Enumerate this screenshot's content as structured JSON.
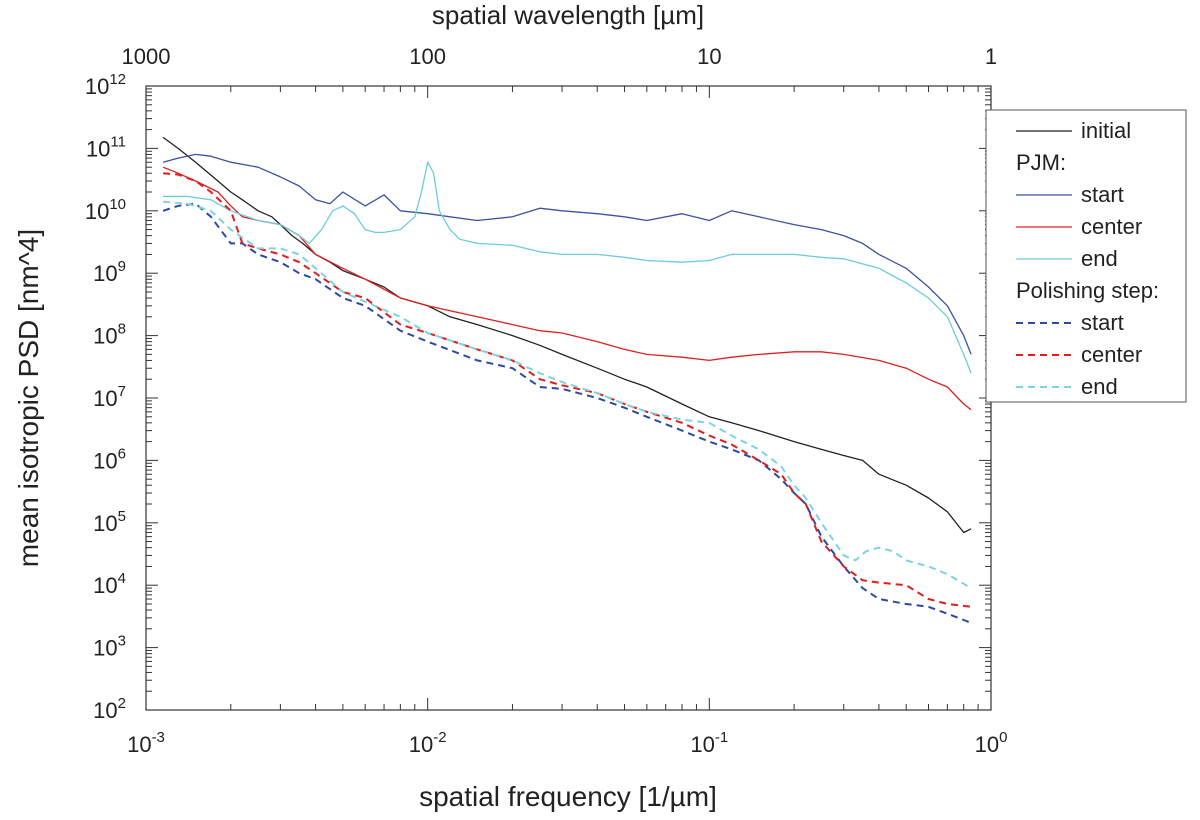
{
  "chart_data": {
    "type": "line",
    "scale": {
      "x": "log",
      "y": "log"
    },
    "xlabel": "spatial frequency [1/µm]",
    "x2label": "spatial wavelength [µm]",
    "ylabel": "mean isotropic PSD [nm^4]",
    "xlim": [
      0.001,
      1
    ],
    "ylim": [
      100,
      1000000000000
    ],
    "x_ticks": [
      {
        "base": "10",
        "exp": "-3"
      },
      {
        "base": "10",
        "exp": "-2"
      },
      {
        "base": "10",
        "exp": "-1"
      },
      {
        "base": "10",
        "exp": "0"
      }
    ],
    "x2_ticks": [
      "1000",
      "100",
      "10",
      "1"
    ],
    "y_ticks": [
      {
        "base": "10",
        "exp": "2"
      },
      {
        "base": "10",
        "exp": "3"
      },
      {
        "base": "10",
        "exp": "4"
      },
      {
        "base": "10",
        "exp": "5"
      },
      {
        "base": "10",
        "exp": "6"
      },
      {
        "base": "10",
        "exp": "7"
      },
      {
        "base": "10",
        "exp": "8"
      },
      {
        "base": "10",
        "exp": "9"
      },
      {
        "base": "10",
        "exp": "10"
      },
      {
        "base": "10",
        "exp": "11"
      },
      {
        "base": "10",
        "exp": "12"
      }
    ],
    "legend": {
      "position": "right",
      "header_pjm": "PJM:",
      "header_polishing": "Polishing step:"
    },
    "series": [
      {
        "name": "initial",
        "group": "",
        "color": "#222222",
        "dash": "solid",
        "x": [
          0.00115,
          0.0013,
          0.0015,
          0.0018,
          0.002,
          0.0022,
          0.0025,
          0.0028,
          0.003,
          0.0033,
          0.0036,
          0.004,
          0.0045,
          0.005,
          0.006,
          0.007,
          0.008,
          0.01,
          0.012,
          0.015,
          0.02,
          0.025,
          0.03,
          0.04,
          0.05,
          0.06,
          0.08,
          0.1,
          0.12,
          0.15,
          0.2,
          0.25,
          0.3,
          0.35,
          0.4,
          0.5,
          0.6,
          0.7,
          0.8,
          0.85
        ],
        "y": [
          150000000000,
          100000000000,
          60000000000,
          30000000000,
          20000000000,
          15000000000,
          10000000000,
          8000000000,
          6000000000,
          4000000000,
          3000000000,
          2000000000,
          1500000000,
          1100000000,
          800000000,
          600000000,
          400000000,
          300000000,
          200000000,
          150000000,
          100000000,
          70000000,
          50000000,
          30000000,
          20000000,
          15000000,
          8000000,
          5000000,
          4000000,
          3000000,
          2000000,
          1500000,
          1200000,
          1000000,
          600000,
          400000,
          250000,
          150000,
          70000,
          80000
        ]
      },
      {
        "name": "start",
        "group": "PJM",
        "color": "#3a52a3",
        "dash": "solid",
        "x": [
          0.00115,
          0.0013,
          0.0015,
          0.0017,
          0.002,
          0.0025,
          0.003,
          0.0035,
          0.004,
          0.0045,
          0.005,
          0.006,
          0.007,
          0.008,
          0.01,
          0.012,
          0.015,
          0.02,
          0.025,
          0.03,
          0.04,
          0.05,
          0.06,
          0.08,
          0.1,
          0.12,
          0.15,
          0.2,
          0.25,
          0.3,
          0.35,
          0.4,
          0.5,
          0.6,
          0.7,
          0.8,
          0.85
        ],
        "y": [
          60000000000,
          70000000000,
          80000000000,
          75000000000,
          60000000000,
          50000000000,
          35000000000,
          25000000000,
          15000000000,
          13000000000,
          20000000000,
          12000000000,
          18000000000,
          10000000000,
          9000000000,
          8000000000,
          7000000000,
          8000000000,
          11000000000,
          10000000000,
          9000000000,
          8000000000,
          7000000000,
          9000000000,
          7000000000,
          10000000000,
          8000000000,
          6000000000,
          5000000000,
          4000000000,
          3000000000,
          2000000000,
          1200000000,
          600000000,
          300000000,
          100000000,
          50000000
        ]
      },
      {
        "name": "center",
        "group": "PJM",
        "color": "#e02020",
        "dash": "solid",
        "x": [
          0.00115,
          0.0013,
          0.0015,
          0.0018,
          0.002,
          0.0022,
          0.0025,
          0.003,
          0.0035,
          0.004,
          0.005,
          0.006,
          0.008,
          0.01,
          0.012,
          0.015,
          0.02,
          0.025,
          0.03,
          0.04,
          0.05,
          0.06,
          0.08,
          0.1,
          0.12,
          0.15,
          0.2,
          0.25,
          0.3,
          0.4,
          0.5,
          0.6,
          0.7,
          0.8,
          0.85
        ],
        "y": [
          50000000000,
          40000000000,
          30000000000,
          20000000000,
          12000000000,
          8000000000,
          7000000000,
          6000000000,
          4000000000,
          2000000000,
          1200000000,
          800000000,
          400000000,
          300000000,
          250000000,
          200000000,
          150000000,
          120000000,
          110000000,
          80000000,
          60000000,
          50000000,
          45000000,
          40000000,
          45000000,
          50000000,
          55000000,
          55000000,
          50000000,
          40000000,
          30000000,
          20000000,
          15000000,
          8000000,
          6500000
        ]
      },
      {
        "name": "end",
        "group": "PJM",
        "color": "#6ccbdc",
        "dash": "solid",
        "x": [
          0.00115,
          0.0014,
          0.0017,
          0.002,
          0.0025,
          0.003,
          0.0035,
          0.0038,
          0.0042,
          0.0046,
          0.005,
          0.0055,
          0.006,
          0.0065,
          0.007,
          0.008,
          0.009,
          0.0095,
          0.01,
          0.0105,
          0.011,
          0.012,
          0.013,
          0.015,
          0.02,
          0.025,
          0.03,
          0.04,
          0.05,
          0.06,
          0.08,
          0.1,
          0.12,
          0.15,
          0.2,
          0.25,
          0.3,
          0.4,
          0.5,
          0.6,
          0.7,
          0.8,
          0.85
        ],
        "y": [
          17000000000,
          17000000000,
          15000000000,
          10000000000,
          7000000000,
          6000000000,
          4000000000,
          3000000000,
          5000000000,
          10000000000,
          12000000000,
          9000000000,
          5000000000,
          4500000000,
          4500000000,
          5000000000,
          8000000000,
          20000000000,
          60000000000,
          40000000000,
          10000000000,
          5000000000,
          3500000000,
          3000000000,
          2800000000,
          2200000000,
          2000000000,
          2000000000,
          1800000000,
          1600000000,
          1500000000,
          1600000000,
          2000000000,
          2000000000,
          2000000000,
          1800000000,
          1700000000,
          1200000000,
          700000000,
          400000000,
          200000000,
          50000000,
          25000000
        ]
      },
      {
        "name": "start",
        "group": "Polishing step",
        "color": "#2a4aa0",
        "dash": "dashed",
        "x": [
          0.00115,
          0.0013,
          0.0015,
          0.0017,
          0.002,
          0.0022,
          0.0025,
          0.003,
          0.0035,
          0.004,
          0.005,
          0.006,
          0.008,
          0.01,
          0.015,
          0.02,
          0.025,
          0.03,
          0.04,
          0.05,
          0.06,
          0.08,
          0.1,
          0.12,
          0.15,
          0.18,
          0.2,
          0.22,
          0.25,
          0.3,
          0.35,
          0.4,
          0.5,
          0.6,
          0.7,
          0.85
        ],
        "y": [
          10000000000,
          12000000000,
          13000000000,
          8000000000,
          3000000000,
          3000000000,
          2000000000,
          1500000000,
          1000000000,
          800000000,
          400000000,
          300000000,
          120000000,
          80000000,
          40000000,
          30000000,
          15000000,
          14000000,
          10000000,
          7000000,
          5000000,
          3000000,
          2000000,
          1500000,
          1000000,
          500000,
          300000,
          200000,
          60000,
          20000,
          9000,
          6000,
          5000,
          4500,
          3500,
          2500
        ]
      },
      {
        "name": "center",
        "group": "Polishing step",
        "color": "#e21b1b",
        "dash": "dashed",
        "x": [
          0.00115,
          0.0013,
          0.0015,
          0.0017,
          0.002,
          0.0022,
          0.0025,
          0.003,
          0.0035,
          0.004,
          0.005,
          0.006,
          0.008,
          0.01,
          0.015,
          0.02,
          0.025,
          0.03,
          0.04,
          0.05,
          0.06,
          0.08,
          0.1,
          0.12,
          0.15,
          0.18,
          0.2,
          0.22,
          0.25,
          0.3,
          0.35,
          0.4,
          0.5,
          0.6,
          0.7,
          0.85
        ],
        "y": [
          40000000000,
          38000000000,
          30000000000,
          20000000000,
          10000000000,
          3000000000,
          2500000000,
          2000000000,
          1500000000,
          1000000000,
          500000000,
          400000000,
          150000000,
          110000000,
          60000000,
          40000000,
          20000000,
          16000000,
          12000000,
          8000000,
          6000000,
          4000000,
          2500000,
          1800000,
          1000000,
          600000,
          300000,
          200000,
          50000,
          20000,
          12000,
          11000,
          10000,
          6000,
          5000,
          4500
        ]
      },
      {
        "name": "end",
        "group": "Polishing step",
        "color": "#7ed3e2",
        "dash": "dashed",
        "x": [
          0.00115,
          0.0014,
          0.0017,
          0.002,
          0.0025,
          0.003,
          0.0035,
          0.004,
          0.005,
          0.006,
          0.008,
          0.01,
          0.015,
          0.02,
          0.025,
          0.03,
          0.04,
          0.05,
          0.06,
          0.08,
          0.1,
          0.12,
          0.15,
          0.18,
          0.2,
          0.22,
          0.25,
          0.3,
          0.33,
          0.36,
          0.4,
          0.45,
          0.5,
          0.6,
          0.7,
          0.85
        ],
        "y": [
          14000000000,
          13000000000,
          10000000000,
          5000000000,
          2500000000,
          2500000000,
          2000000000,
          1200000000,
          500000000,
          350000000,
          200000000,
          110000000,
          60000000,
          40000000,
          25000000,
          18000000,
          12000000,
          8000000,
          6000000,
          4500000,
          4000000,
          2500000,
          1500000,
          800000,
          400000,
          250000,
          100000,
          30000,
          25000,
          35000,
          40000,
          35000,
          25000,
          20000,
          15000,
          9000
        ]
      }
    ]
  }
}
